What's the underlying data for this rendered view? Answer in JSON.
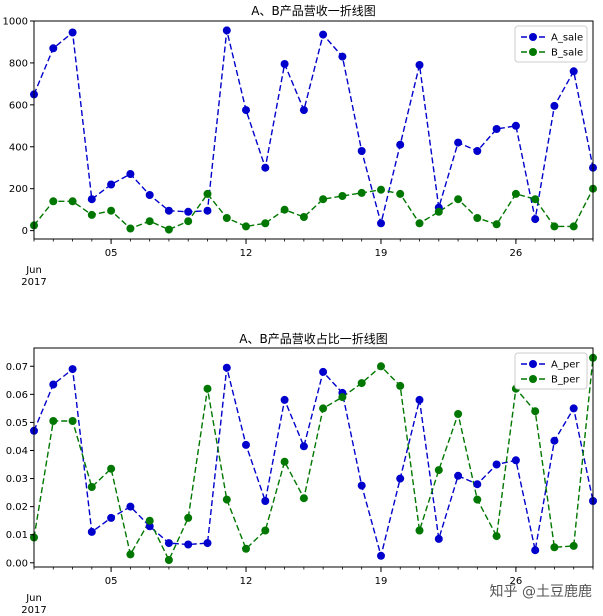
{
  "chart_data": [
    {
      "type": "line",
      "title": "A、B产品营收一折线图",
      "xlabel": "",
      "ylabel": "",
      "x_start": "2017-06-01",
      "x_end": "2017-06-30",
      "x_tick_labels": [
        "05",
        "12",
        "19",
        "26"
      ],
      "x_tick_dates": [
        "2017-06-05",
        "2017-06-12",
        "2017-06-19",
        "2017-06-26"
      ],
      "x_origin_label": [
        "Jun",
        "2017"
      ],
      "ylim": [
        -40,
        1000
      ],
      "y_ticks": [
        0,
        200,
        400,
        600,
        800,
        1000
      ],
      "legend_position": "top-right",
      "grid": false,
      "series": [
        {
          "name": "A_sale",
          "color": "#0000cc",
          "values": [
            650,
            870,
            945,
            150,
            220,
            270,
            170,
            95,
            90,
            95,
            955,
            575,
            300,
            795,
            575,
            935,
            830,
            380,
            35,
            410,
            790,
            110,
            420,
            380,
            485,
            500,
            55,
            595,
            760,
            300
          ]
        },
        {
          "name": "B_sale",
          "color": "#007700",
          "values": [
            25,
            140,
            140,
            75,
            95,
            10,
            45,
            5,
            45,
            175,
            60,
            20,
            35,
            100,
            65,
            150,
            165,
            180,
            195,
            175,
            35,
            90,
            150,
            60,
            30,
            175,
            150,
            20,
            20,
            200
          ]
        }
      ]
    },
    {
      "type": "line",
      "title": "A、B产品营收占比一折线图",
      "xlabel": "",
      "ylabel": "",
      "x_start": "2017-06-01",
      "x_end": "2017-06-30",
      "x_tick_labels": [
        "05",
        "12",
        "19",
        "26"
      ],
      "x_tick_dates": [
        "2017-06-05",
        "2017-06-12",
        "2017-06-19",
        "2017-06-26"
      ],
      "x_origin_label": [
        "Jun",
        "2017"
      ],
      "ylim": [
        -0.0015,
        0.0765
      ],
      "y_ticks": [
        0.0,
        0.01,
        0.02,
        0.03,
        0.04,
        0.05,
        0.06,
        0.07
      ],
      "y_tick_labels": [
        "0.00",
        "0.01",
        "0.02",
        "0.03",
        "0.04",
        "0.05",
        "0.06",
        "0.07"
      ],
      "legend_position": "top-right",
      "grid": false,
      "series": [
        {
          "name": "A_per",
          "color": "#0000cc",
          "values": [
            0.047,
            0.0635,
            0.069,
            0.011,
            0.016,
            0.02,
            0.013,
            0.007,
            0.0065,
            0.007,
            0.0695,
            0.042,
            0.022,
            0.058,
            0.0415,
            0.068,
            0.0605,
            0.0275,
            0.0025,
            0.03,
            0.058,
            0.0085,
            0.031,
            0.028,
            0.035,
            0.0365,
            0.0045,
            0.0435,
            0.055,
            0.022
          ]
        },
        {
          "name": "B_per",
          "color": "#007700",
          "values": [
            0.009,
            0.0505,
            0.0505,
            0.027,
            0.0335,
            0.003,
            0.015,
            0.001,
            0.016,
            0.062,
            0.0225,
            0.005,
            0.0115,
            0.036,
            0.023,
            0.055,
            0.059,
            0.064,
            0.07,
            0.063,
            0.0115,
            0.033,
            0.053,
            0.0225,
            0.0095,
            0.062,
            0.054,
            0.0055,
            0.006,
            0.073
          ]
        }
      ]
    }
  ],
  "watermark": "知乎 @土豆鹿鹿"
}
